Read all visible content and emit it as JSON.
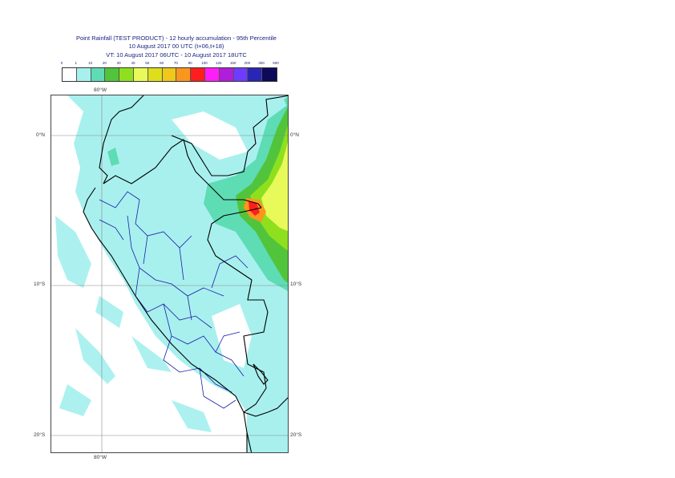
{
  "title": {
    "line1": "Point Rainfall (TEST PRODUCT) - 12 hourly accumulation - 95th Percentile",
    "line2": "10 August 2017 00 UTC (t+06,t+18)",
    "line3": "VT: 10 August 2017 06UTC - 10 August 2017 18UTC"
  },
  "legend": {
    "labels": [
      "0",
      "1",
      "10",
      "20",
      "30",
      "40",
      "50",
      "60",
      "70",
      "80",
      "100",
      "125",
      "150",
      "200",
      "300",
      "500"
    ],
    "colors": [
      "#ffffff",
      "#a8f0ee",
      "#5edcb4",
      "#52c43c",
      "#8ee01e",
      "#e8fa5a",
      "#dede1c",
      "#f0c81a",
      "#fa961e",
      "#ff1e1e",
      "#ff1ef8",
      "#b01eda",
      "#6e3cff",
      "#2a26b4",
      "#0e0a5a"
    ]
  },
  "axes": {
    "lon_top": "80°W",
    "lon_bottom": "80°W",
    "lat_0_left": "0°N",
    "lat_0_right": "0°N",
    "lat_10_left": "10°S",
    "lat_10_right": "10°S",
    "lat_20_left": "20°S",
    "lat_20_right": "20°S"
  },
  "map_colors": {
    "ocean": "#ffffff",
    "light": "#a8f0ee",
    "mid": "#5edcb4",
    "green": "#52c43c",
    "lime": "#8ee01e",
    "yellow": "#e8fa5a",
    "orange": "#fa961e",
    "red": "#ff1e1e",
    "border": "#000000",
    "admin": "#1a1aaa",
    "grid": "#888888"
  }
}
